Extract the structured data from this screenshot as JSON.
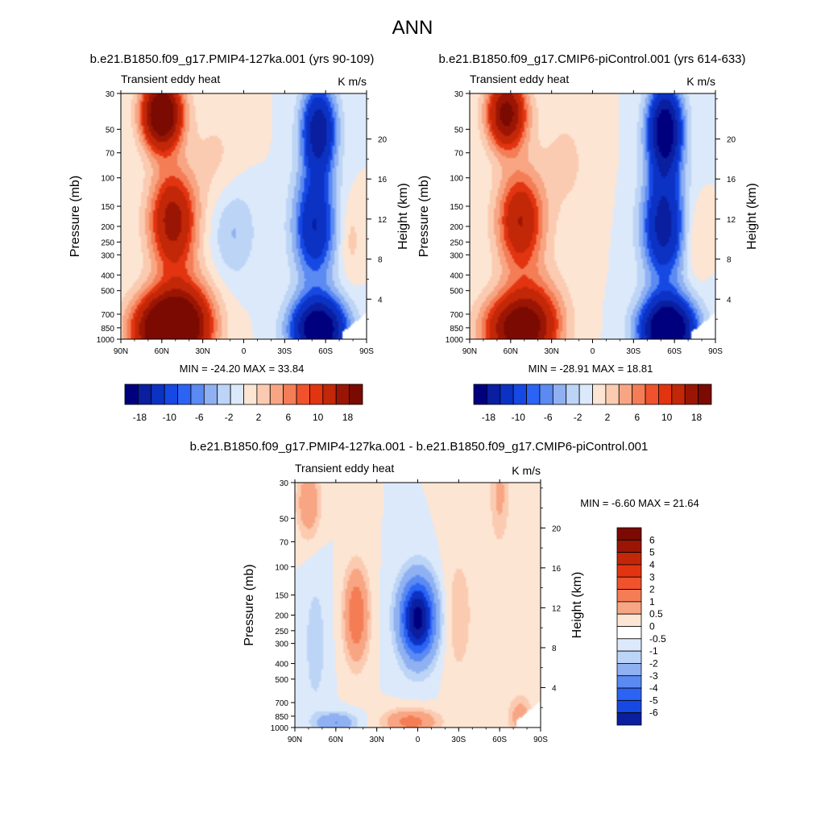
{
  "figure": {
    "title": "ANN"
  },
  "colors": {
    "main_scale": [
      "#00007f",
      "#0a1ea0",
      "#0c32c4",
      "#1648e4",
      "#2b63f5",
      "#5a8af2",
      "#8fb1f2",
      "#bcd4f6",
      "#dce9fb",
      "#fde5d3",
      "#fbcbb1",
      "#f8a583",
      "#f47d56",
      "#ef522c",
      "#e23410",
      "#c22708",
      "#9b1504",
      "#7a0a02"
    ],
    "diff_scale": [
      "#00007f",
      "#0a1ea0",
      "#0c32c4",
      "#1648e4",
      "#2b63f5",
      "#5a8af2",
      "#8fb1f2",
      "#bcd4f6",
      "#dce9fb",
      "#ffffff",
      "#fde5d3",
      "#fbcbb1",
      "#f8a583",
      "#f47d56",
      "#ef522c",
      "#e23410",
      "#c22708",
      "#9b1504",
      "#7a0a02"
    ]
  },
  "chart_data": [
    {
      "type": "heatmap",
      "title": "b.e21.B1850.f09_g17.PMIP4-127ka.001 (yrs 90-109)",
      "left_label": "Transient eddy heat",
      "right_label": "K m/s",
      "ylabel": "Pressure (mb)",
      "ylabel_right": "Height (km)",
      "x_ticks": [
        "90N",
        "60N",
        "30N",
        "0",
        "30S",
        "60S",
        "90S"
      ],
      "x_range": [
        90,
        -90
      ],
      "y_ticks": [
        30,
        50,
        70,
        100,
        150,
        200,
        250,
        300,
        400,
        500,
        700,
        850,
        1000
      ],
      "y_range": [
        30,
        1000
      ],
      "height_ticks": [
        4,
        8,
        12,
        16,
        20
      ],
      "stats": "MIN = -24.20  MAX =  33.84",
      "min": -24.2,
      "max": 33.84,
      "colorbar_labels": [
        "-18",
        "-10",
        "-6",
        "-2",
        "2",
        "6",
        "10",
        "18"
      ],
      "features": [
        {
          "lat": 60,
          "p": 40,
          "amp": 26,
          "slat": 10,
          "slp": 0.35
        },
        {
          "lat": 52,
          "p": 185,
          "amp": 16,
          "slat": 12,
          "slp": 0.5
        },
        {
          "lat": 55,
          "p": 870,
          "amp": 30,
          "slat": 17,
          "slp": 0.35
        },
        {
          "lat": 40,
          "p": 700,
          "amp": 7,
          "slat": 15,
          "slp": 0.45
        },
        {
          "lat": 20,
          "p": 80,
          "amp": 2.5,
          "slat": 14,
          "slp": 0.6
        },
        {
          "lat": -55,
          "p": 50,
          "amp": -17,
          "slat": 9,
          "slp": 0.45
        },
        {
          "lat": -52,
          "p": 200,
          "amp": -14,
          "slat": 11,
          "slp": 0.55
        },
        {
          "lat": -55,
          "p": 870,
          "amp": -24,
          "slat": 14,
          "slp": 0.32
        },
        {
          "lat": 8,
          "p": 210,
          "amp": -4.5,
          "slat": 12,
          "slp": 0.5
        },
        {
          "lat": -78,
          "p": 240,
          "amp": 3,
          "slat": 6,
          "slp": 0.4
        }
      ]
    },
    {
      "type": "heatmap",
      "title": "b.e21.B1850.f09_g17.CMIP6-piControl.001 (yrs 614-633)",
      "left_label": "Transient eddy heat",
      "right_label": "K m/s",
      "ylabel": "Pressure (mb)",
      "ylabel_right": "Height (km)",
      "x_ticks": [
        "90N",
        "60N",
        "30N",
        "0",
        "30S",
        "60S",
        "90S"
      ],
      "x_range": [
        90,
        -90
      ],
      "y_ticks": [
        30,
        50,
        70,
        100,
        150,
        200,
        250,
        300,
        400,
        500,
        700,
        850,
        1000
      ],
      "y_range": [
        30,
        1000
      ],
      "height_ticks": [
        4,
        8,
        12,
        16,
        20
      ],
      "stats": "MIN = -28.91  MAX =  18.81",
      "min": -28.91,
      "max": 18.81,
      "colorbar_labels": [
        "-18",
        "-10",
        "-6",
        "-2",
        "2",
        "6",
        "10",
        "18"
      ],
      "features": [
        {
          "lat": 63,
          "p": 40,
          "amp": 20,
          "slat": 10,
          "slp": 0.35
        },
        {
          "lat": 53,
          "p": 185,
          "amp": 14,
          "slat": 12,
          "slp": 0.5
        },
        {
          "lat": 55,
          "p": 870,
          "amp": 20,
          "slat": 17,
          "slp": 0.35
        },
        {
          "lat": 40,
          "p": 700,
          "amp": 6,
          "slat": 15,
          "slp": 0.45
        },
        {
          "lat": 20,
          "p": 80,
          "amp": 2.5,
          "slat": 14,
          "slp": 0.6
        },
        {
          "lat": -53,
          "p": 50,
          "amp": -22,
          "slat": 9,
          "slp": 0.45
        },
        {
          "lat": -52,
          "p": 200,
          "amp": -16,
          "slat": 11,
          "slp": 0.55
        },
        {
          "lat": -55,
          "p": 870,
          "amp": -27,
          "slat": 14,
          "slp": 0.32
        },
        {
          "lat": -75,
          "p": 240,
          "amp": 3,
          "slat": 6,
          "slp": 0.4
        }
      ]
    },
    {
      "type": "heatmap",
      "title": "b.e21.B1850.f09_g17.PMIP4-127ka.001 - b.e21.B1850.f09_g17.CMIP6-piControl.001",
      "left_label": "Transient eddy heat",
      "right_label": "K m/s",
      "ylabel": "Pressure (mb)",
      "ylabel_right": "Height (km)",
      "x_ticks": [
        "90N",
        "60N",
        "30N",
        "0",
        "30S",
        "60S",
        "90S"
      ],
      "x_range": [
        90,
        -90
      ],
      "y_ticks": [
        30,
        50,
        70,
        100,
        150,
        200,
        250,
        300,
        400,
        500,
        700,
        850,
        1000
      ],
      "y_range": [
        30,
        1000
      ],
      "height_ticks": [
        4,
        8,
        12,
        16,
        20
      ],
      "stats": "MIN =  -6.60  MAX =  21.64",
      "min": -6.6,
      "max": 21.64,
      "colorbar_labels": [
        "6",
        "5",
        "4",
        "3",
        "2",
        "1",
        "0.5",
        "0",
        "-0.5",
        "-1",
        "-2",
        "-3",
        "-4",
        "-5",
        "-6"
      ],
      "features": [
        {
          "lat": 0,
          "p": 210,
          "amp": -6.5,
          "slat": 9,
          "slp": 0.4
        },
        {
          "lat": 45,
          "p": 200,
          "amp": 3,
          "slat": 6,
          "slp": 0.45
        },
        {
          "lat": 80,
          "p": 40,
          "amp": 1.8,
          "slat": 6,
          "slp": 0.35
        },
        {
          "lat": -60,
          "p": 35,
          "amp": 1.2,
          "slat": 5,
          "slp": 0.5
        },
        {
          "lat": 5,
          "p": 920,
          "amp": 2.5,
          "slat": 13,
          "slp": 0.12
        },
        {
          "lat": 60,
          "p": 930,
          "amp": -2,
          "slat": 10,
          "slp": 0.1
        },
        {
          "lat": -30,
          "p": 200,
          "amp": 0.8,
          "slat": 8,
          "slp": 0.7
        },
        {
          "lat": 75,
          "p": 300,
          "amp": -0.8,
          "slat": 6,
          "slp": 0.7
        },
        {
          "lat": -75,
          "p": 850,
          "amp": 1.5,
          "slat": 6,
          "slp": 0.2
        }
      ]
    }
  ]
}
